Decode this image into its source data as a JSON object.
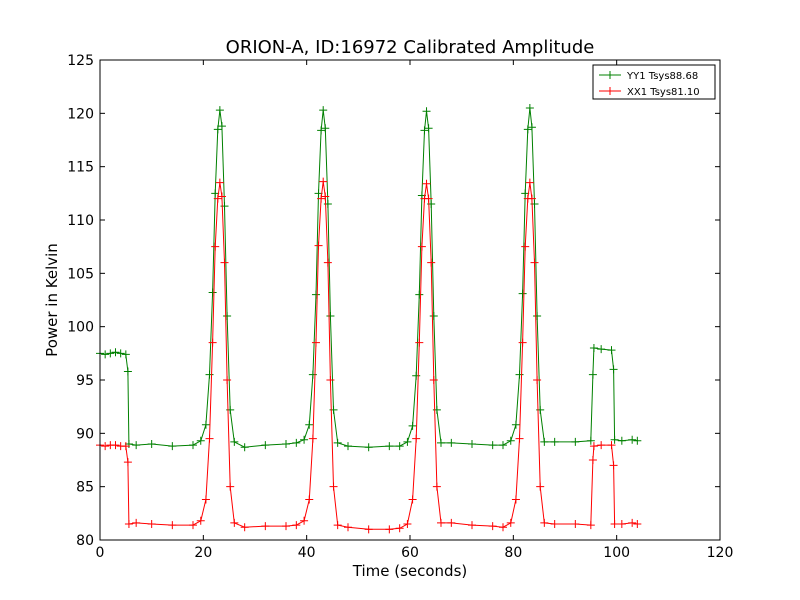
{
  "chart_data": {
    "type": "line",
    "title": "ORION-A, ID:16972 Calibrated Amplitude",
    "xlabel": "Time (seconds)",
    "ylabel": "Power in Kelvin",
    "xlim": [
      0,
      120
    ],
    "ylim": [
      80,
      125
    ],
    "xticks": [
      0,
      20,
      40,
      60,
      80,
      100,
      120
    ],
    "yticks": [
      80,
      85,
      90,
      95,
      100,
      105,
      110,
      115,
      120,
      125
    ],
    "grid": false,
    "legend_position": "top-right",
    "marker": "plus",
    "series": [
      {
        "name": "YY1 Tsys88.68",
        "color": "#008000",
        "x": [
          0,
          1,
          2,
          3,
          4,
          5,
          5.4,
          5.6,
          7,
          10,
          14,
          18,
          19.5,
          20.5,
          21.2,
          21.8,
          22.3,
          22.8,
          23.2,
          23.6,
          24.1,
          24.6,
          25.2,
          26,
          28,
          32,
          36,
          38,
          39.5,
          40.5,
          41.2,
          41.8,
          42.3,
          42.8,
          43.2,
          43.6,
          44.1,
          44.6,
          45.2,
          46,
          48,
          52,
          56,
          58,
          59.5,
          60.5,
          61.2,
          61.8,
          62.3,
          62.8,
          63.2,
          63.6,
          64.1,
          64.6,
          65.2,
          66,
          68,
          72,
          76,
          78,
          79.5,
          80.5,
          81.2,
          81.8,
          82.3,
          82.8,
          83.2,
          83.6,
          84.1,
          84.6,
          85.2,
          86,
          88,
          92,
          95,
          95.4,
          95.6,
          97,
          99,
          99.4,
          99.6,
          101,
          103,
          104
        ],
        "y": [
          97.5,
          97.4,
          97.5,
          97.6,
          97.5,
          97.4,
          95.8,
          89.0,
          88.9,
          89.0,
          88.8,
          88.9,
          89.3,
          90.8,
          95.5,
          103.2,
          112.5,
          118.5,
          120.3,
          118.8,
          111.3,
          101.0,
          92.2,
          89.2,
          88.7,
          88.9,
          89.0,
          89.1,
          89.4,
          90.8,
          95.5,
          103.0,
          112.5,
          118.4,
          120.3,
          118.6,
          111.5,
          101.0,
          92.2,
          89.1,
          88.8,
          88.7,
          88.8,
          88.8,
          89.2,
          90.7,
          95.4,
          103.0,
          112.3,
          118.4,
          120.2,
          118.6,
          111.5,
          101.0,
          92.2,
          89.1,
          89.1,
          89.0,
          88.9,
          88.9,
          89.3,
          90.8,
          95.5,
          103.1,
          112.5,
          118.5,
          120.5,
          118.7,
          111.5,
          101.0,
          92.2,
          89.2,
          89.2,
          89.2,
          89.3,
          95.5,
          98.0,
          97.9,
          97.8,
          96.0,
          89.4,
          89.3,
          89.4,
          89.3
        ]
      },
      {
        "name": "XX1 Tsys81.10",
        "color": "#ff0000",
        "x": [
          0,
          1,
          2,
          3,
          4,
          5,
          5.4,
          5.6,
          7,
          10,
          14,
          18,
          19.5,
          20.5,
          21.2,
          21.8,
          22.3,
          22.8,
          23.2,
          23.6,
          24.1,
          24.6,
          25.2,
          26,
          28,
          32,
          36,
          38,
          39.5,
          40.5,
          41.2,
          41.8,
          42.3,
          42.8,
          43.2,
          43.6,
          44.1,
          44.6,
          45.2,
          46,
          48,
          52,
          56,
          58,
          59.5,
          60.5,
          61.2,
          61.8,
          62.3,
          62.8,
          63.2,
          63.6,
          64.1,
          64.6,
          65.2,
          66,
          68,
          72,
          76,
          78,
          79.5,
          80.5,
          81.2,
          81.8,
          82.3,
          82.8,
          83.2,
          83.6,
          84.1,
          84.6,
          85.2,
          86,
          88,
          92,
          95,
          95.4,
          95.6,
          97,
          99,
          99.4,
          99.6,
          101,
          103,
          104
        ],
        "y": [
          88.9,
          88.8,
          88.9,
          88.9,
          88.8,
          88.8,
          87.3,
          81.5,
          81.6,
          81.5,
          81.4,
          81.4,
          81.8,
          83.8,
          89.5,
          98.5,
          107.5,
          112.0,
          113.5,
          112.2,
          106.0,
          95.0,
          85.0,
          81.6,
          81.2,
          81.3,
          81.3,
          81.4,
          81.8,
          83.8,
          89.5,
          98.5,
          107.6,
          112.0,
          113.6,
          112.2,
          106.0,
          95.0,
          85.0,
          81.4,
          81.2,
          81.0,
          81.0,
          81.1,
          81.5,
          83.8,
          89.5,
          98.5,
          107.5,
          112.0,
          113.4,
          112.0,
          106.0,
          95.0,
          85.0,
          81.6,
          81.6,
          81.4,
          81.3,
          81.2,
          81.6,
          83.8,
          89.5,
          98.5,
          107.5,
          112.0,
          113.5,
          112.0,
          106.0,
          95.0,
          85.0,
          81.6,
          81.5,
          81.5,
          81.4,
          87.5,
          88.8,
          88.9,
          88.9,
          87.0,
          81.5,
          81.5,
          81.6,
          81.5
        ]
      }
    ]
  }
}
